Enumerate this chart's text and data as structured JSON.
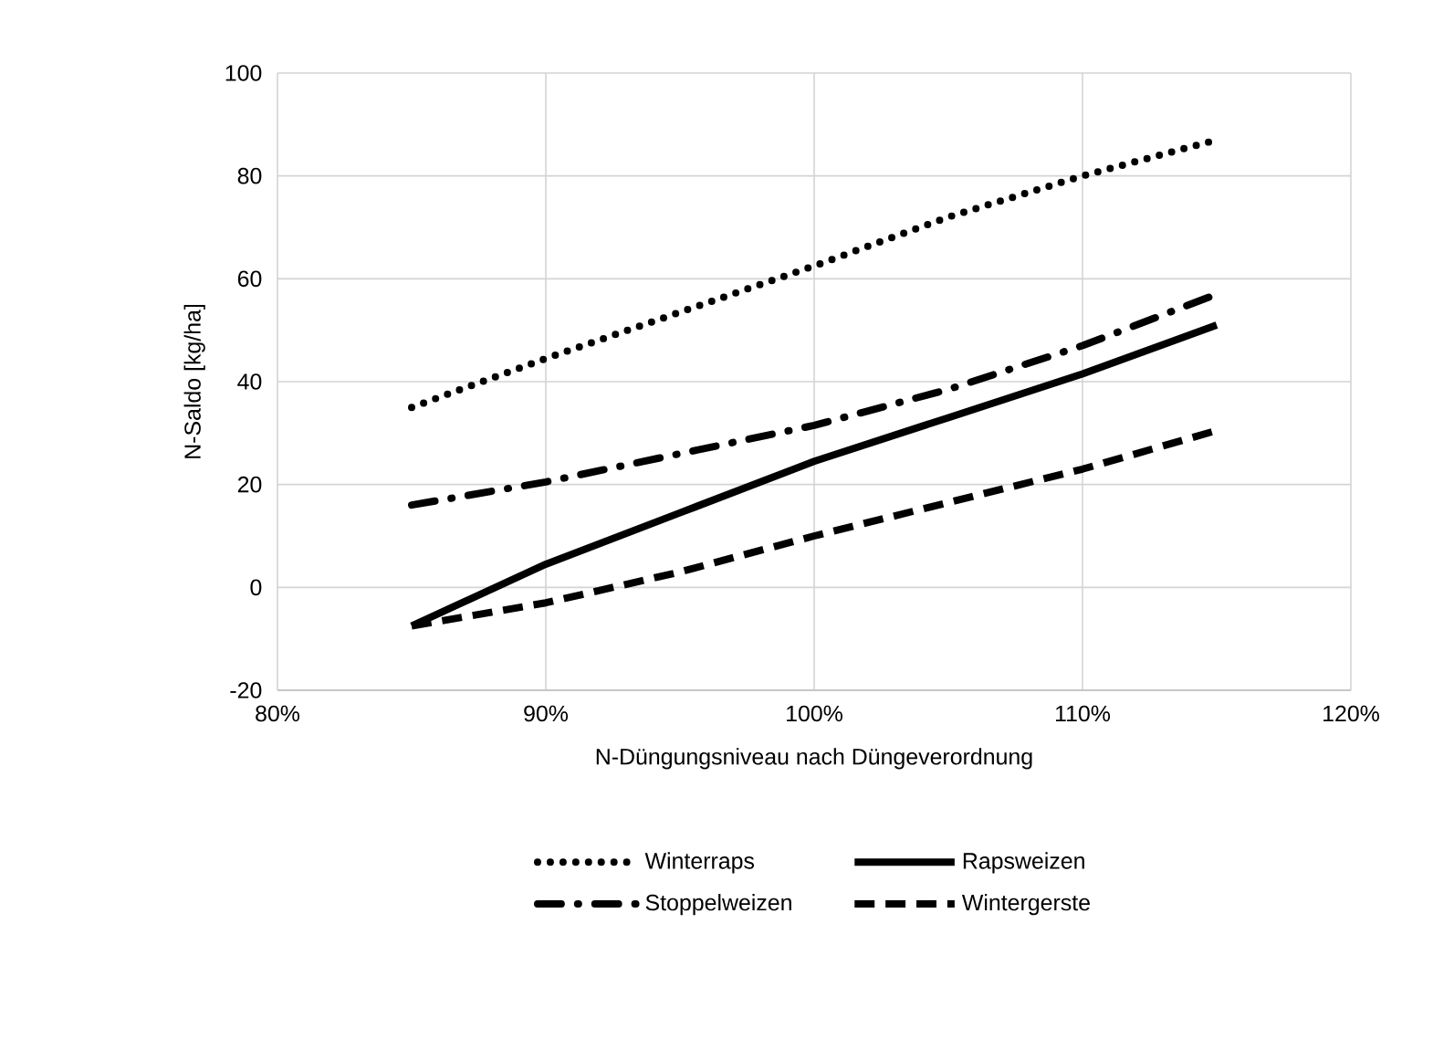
{
  "chart_data": {
    "type": "line",
    "xlabel": "N-Düngungsniveau nach Düngeverordnung",
    "ylabel": "N-Saldo [kg/ha]",
    "x": [
      85,
      90,
      95,
      100,
      105,
      110,
      115
    ],
    "series": [
      {
        "name": "Winterraps",
        "color": "#000000",
        "line_style": "dotted",
        "values": [
          35,
          44.5,
          53.5,
          62.5,
          72,
          80,
          87
        ]
      },
      {
        "name": "Rapsweizen",
        "color": "#000000",
        "line_style": "solid",
        "values": [
          -7.5,
          4.5,
          14.5,
          24.5,
          33,
          41.5,
          51
        ]
      },
      {
        "name": "Stoppelweizen",
        "color": "#000000",
        "line_style": "dashdot",
        "values": [
          16,
          20.5,
          26,
          31.5,
          38.5,
          47,
          57
        ]
      },
      {
        "name": "Wintergerste",
        "color": "#000000",
        "line_style": "dashed",
        "values": [
          -7.5,
          -3,
          3,
          10,
          16.5,
          23,
          30.5
        ]
      }
    ],
    "xlim": [
      80,
      120
    ],
    "xticks": [
      {
        "value": 80,
        "label": "80%"
      },
      {
        "value": 90,
        "label": "90%"
      },
      {
        "value": 100,
        "label": "100%"
      },
      {
        "value": 110,
        "label": "110%"
      },
      {
        "value": 120,
        "label": "120%"
      }
    ],
    "ylim": [
      -20,
      100
    ],
    "yticks": [
      -20,
      0,
      20,
      40,
      60,
      80,
      100
    ],
    "grid": true,
    "legend": "bottom",
    "marker": "none"
  }
}
